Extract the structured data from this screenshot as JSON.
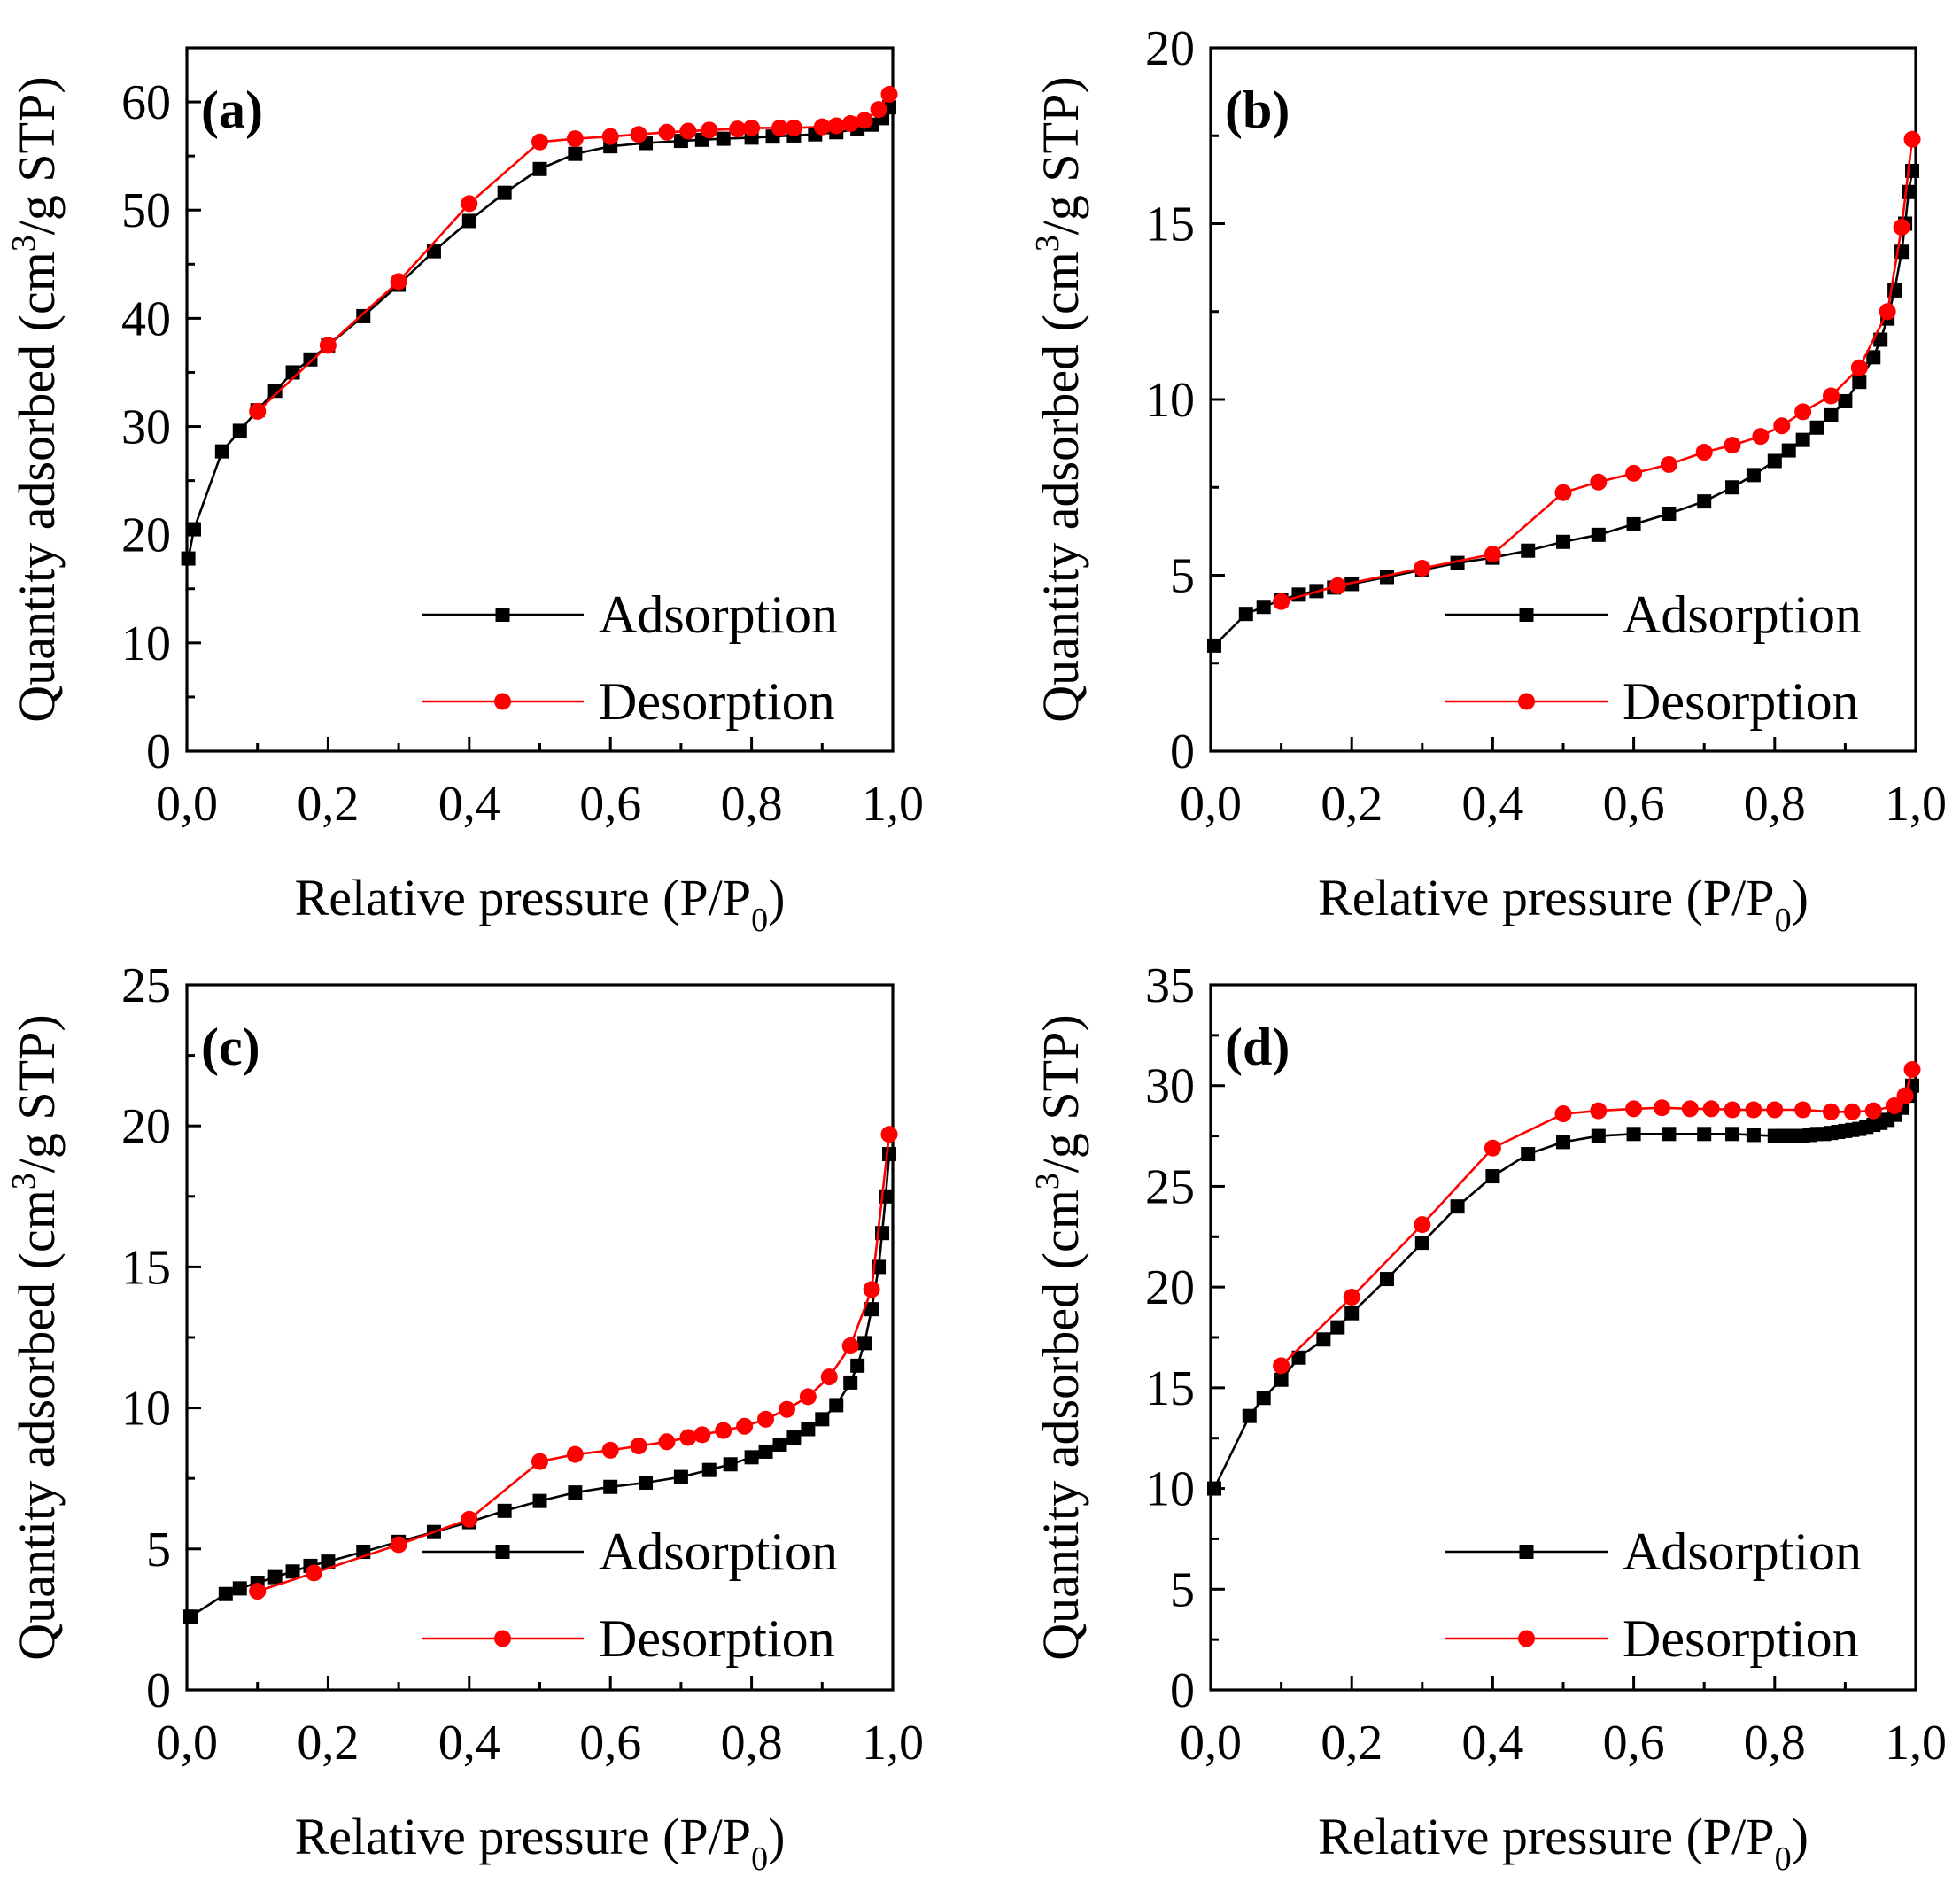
{
  "legend_labels": [
    "Adsorption",
    "Desorption"
  ],
  "colors": {
    "adsorption": "#000000",
    "desorption": "#ff0000"
  },
  "chart_data": [
    {
      "panel": "(a)",
      "type": "line",
      "xlabel": {
        "main": "Relative pressure (P/P",
        "sub": "0",
        "tail": ")"
      },
      "ylabel": {
        "main": "Quantity adsorbed (cm",
        "sup": "3",
        "tail": "/g STP)"
      },
      "xlim": [
        0,
        1
      ],
      "ylim": [
        0,
        65
      ],
      "xticks": [
        "0,0",
        "0,2",
        "0,4",
        "0,6",
        "0,8",
        "1,0"
      ],
      "yticks": [
        "0",
        "10",
        "20",
        "30",
        "40",
        "50",
        "60"
      ],
      "legend_position": "bottom-right",
      "series": [
        {
          "name": "Adsorption",
          "marker": "square",
          "x": [
            0.002,
            0.01,
            0.05,
            0.075,
            0.1,
            0.125,
            0.15,
            0.175,
            0.2,
            0.25,
            0.3,
            0.35,
            0.4,
            0.45,
            0.5,
            0.55,
            0.6,
            0.65,
            0.7,
            0.73,
            0.76,
            0.8,
            0.83,
            0.86,
            0.89,
            0.92,
            0.95,
            0.97,
            0.985,
            0.995
          ],
          "y": [
            17.8,
            20.5,
            27.7,
            29.6,
            31.5,
            33.3,
            35.0,
            36.2,
            37.5,
            40.2,
            43.1,
            46.2,
            49.0,
            51.6,
            53.8,
            55.2,
            55.9,
            56.2,
            56.4,
            56.5,
            56.6,
            56.7,
            56.8,
            56.9,
            57.0,
            57.2,
            57.5,
            57.9,
            58.5,
            59.5
          ]
        },
        {
          "name": "Desorption",
          "marker": "circle",
          "x": [
            0.995,
            0.98,
            0.96,
            0.94,
            0.92,
            0.9,
            0.86,
            0.84,
            0.8,
            0.78,
            0.74,
            0.71,
            0.68,
            0.64,
            0.6,
            0.55,
            0.5,
            0.4,
            0.3,
            0.2,
            0.1
          ],
          "y": [
            60.7,
            59.3,
            58.3,
            58.0,
            57.8,
            57.7,
            57.6,
            57.6,
            57.6,
            57.5,
            57.4,
            57.3,
            57.2,
            57.0,
            56.8,
            56.6,
            56.3,
            50.6,
            43.4,
            37.5,
            31.4
          ]
        }
      ]
    },
    {
      "panel": "(b)",
      "type": "line",
      "xlabel": {
        "main": "Relative pressure (P/P",
        "sub": "0",
        "tail": ")"
      },
      "ylabel": {
        "main": "Quantity adsorbed (cm",
        "sup": "3",
        "tail": "/g STP)"
      },
      "xlim": [
        0,
        1
      ],
      "ylim": [
        0,
        20
      ],
      "xticks": [
        "0,0",
        "0,2",
        "0,4",
        "0,6",
        "0,8",
        "1,0"
      ],
      "yticks": [
        "0",
        "5",
        "10",
        "15",
        "20"
      ],
      "legend_position": "bottom-right",
      "series": [
        {
          "name": "Adsorption",
          "marker": "square",
          "x": [
            0.005,
            0.05,
            0.075,
            0.1,
            0.125,
            0.15,
            0.175,
            0.2,
            0.25,
            0.3,
            0.35,
            0.4,
            0.45,
            0.5,
            0.55,
            0.6,
            0.65,
            0.7,
            0.74,
            0.77,
            0.8,
            0.82,
            0.84,
            0.86,
            0.88,
            0.9,
            0.92,
            0.94,
            0.95,
            0.96,
            0.97,
            0.98,
            0.985,
            0.99,
            0.995
          ],
          "y": [
            3.0,
            3.9,
            4.1,
            4.3,
            4.45,
            4.55,
            4.65,
            4.75,
            4.95,
            5.15,
            5.35,
            5.5,
            5.7,
            5.95,
            6.15,
            6.45,
            6.75,
            7.1,
            7.5,
            7.85,
            8.25,
            8.55,
            8.85,
            9.2,
            9.55,
            9.95,
            10.5,
            11.2,
            11.7,
            12.3,
            13.1,
            14.2,
            15.0,
            15.9,
            16.5
          ]
        },
        {
          "name": "Desorption",
          "marker": "circle",
          "x": [
            0.995,
            0.98,
            0.96,
            0.92,
            0.88,
            0.84,
            0.81,
            0.78,
            0.74,
            0.7,
            0.65,
            0.6,
            0.55,
            0.5,
            0.4,
            0.3,
            0.18,
            0.1
          ],
          "y": [
            17.4,
            14.9,
            12.5,
            10.9,
            10.1,
            9.65,
            9.25,
            8.95,
            8.7,
            8.5,
            8.15,
            7.9,
            7.65,
            7.35,
            5.6,
            5.2,
            4.7,
            4.25
          ]
        }
      ]
    },
    {
      "panel": "(c)",
      "type": "line",
      "xlabel": {
        "main": "Relative pressure (P/P",
        "sub": "0",
        "tail": ")"
      },
      "ylabel": {
        "main": "Quantity adsorbed (cm",
        "sup": "3",
        "tail": "/g STP)"
      },
      "xlim": [
        0,
        1
      ],
      "ylim": [
        0,
        25
      ],
      "xticks": [
        "0,0",
        "0,2",
        "0,4",
        "0,6",
        "0,8",
        "1,0"
      ],
      "yticks": [
        "0",
        "5",
        "10",
        "15",
        "20",
        "25"
      ],
      "legend_position": "bottom-right",
      "series": [
        {
          "name": "Adsorption",
          "marker": "square",
          "x": [
            0.005,
            0.055,
            0.075,
            0.1,
            0.125,
            0.15,
            0.175,
            0.2,
            0.25,
            0.3,
            0.35,
            0.4,
            0.45,
            0.5,
            0.55,
            0.6,
            0.65,
            0.7,
            0.74,
            0.77,
            0.8,
            0.82,
            0.84,
            0.86,
            0.88,
            0.9,
            0.92,
            0.94,
            0.95,
            0.96,
            0.97,
            0.98,
            0.985,
            0.99,
            0.995
          ],
          "y": [
            2.6,
            3.4,
            3.6,
            3.8,
            4.0,
            4.2,
            4.4,
            4.55,
            4.9,
            5.25,
            5.6,
            5.95,
            6.35,
            6.7,
            7.0,
            7.2,
            7.35,
            7.55,
            7.8,
            8.0,
            8.25,
            8.45,
            8.7,
            8.95,
            9.25,
            9.6,
            10.1,
            10.9,
            11.5,
            12.3,
            13.5,
            15.0,
            16.2,
            17.5,
            19.0
          ]
        },
        {
          "name": "Desorption",
          "marker": "circle",
          "x": [
            0.995,
            0.97,
            0.94,
            0.91,
            0.88,
            0.85,
            0.82,
            0.79,
            0.76,
            0.73,
            0.71,
            0.68,
            0.64,
            0.6,
            0.55,
            0.5,
            0.4,
            0.3,
            0.18,
            0.1
          ],
          "y": [
            19.7,
            14.2,
            12.2,
            11.1,
            10.4,
            9.95,
            9.6,
            9.35,
            9.2,
            9.05,
            8.95,
            8.8,
            8.65,
            8.5,
            8.35,
            8.1,
            6.05,
            5.15,
            4.15,
            3.5
          ]
        }
      ]
    },
    {
      "panel": "(d)",
      "type": "line",
      "xlabel": {
        "main": "Relative pressure (P/P",
        "sub": "0",
        "tail": ")"
      },
      "ylabel": {
        "main": "Quantity adsorbed (cm",
        "sup": "3",
        "tail": "/g STP)"
      },
      "xlim": [
        0,
        1
      ],
      "ylim": [
        0,
        35
      ],
      "xticks": [
        "0,0",
        "0,2",
        "0,4",
        "0,6",
        "0,8",
        "1,0"
      ],
      "yticks": [
        "0",
        "5",
        "10",
        "15",
        "20",
        "25",
        "30",
        "35"
      ],
      "legend_position": "bottom-right",
      "series": [
        {
          "name": "Adsorption",
          "marker": "square",
          "x": [
            0.005,
            0.055,
            0.075,
            0.1,
            0.125,
            0.16,
            0.18,
            0.2,
            0.25,
            0.3,
            0.35,
            0.4,
            0.45,
            0.5,
            0.55,
            0.6,
            0.65,
            0.7,
            0.74,
            0.77,
            0.8,
            0.81,
            0.82,
            0.83,
            0.84,
            0.85,
            0.86,
            0.87,
            0.88,
            0.89,
            0.9,
            0.91,
            0.92,
            0.93,
            0.94,
            0.95,
            0.96,
            0.97,
            0.98,
            0.99,
            0.995
          ],
          "y": [
            10.0,
            13.6,
            14.5,
            15.4,
            16.5,
            17.4,
            18.0,
            18.7,
            20.4,
            22.2,
            24.0,
            25.5,
            26.6,
            27.2,
            27.5,
            27.6,
            27.6,
            27.6,
            27.6,
            27.55,
            27.5,
            27.5,
            27.5,
            27.5,
            27.5,
            27.55,
            27.6,
            27.6,
            27.65,
            27.7,
            27.75,
            27.8,
            27.85,
            27.95,
            28.05,
            28.15,
            28.3,
            28.55,
            28.9,
            29.5,
            30.0
          ]
        },
        {
          "name": "Desorption",
          "marker": "circle",
          "x": [
            0.995,
            0.985,
            0.97,
            0.94,
            0.91,
            0.88,
            0.84,
            0.8,
            0.77,
            0.74,
            0.71,
            0.68,
            0.64,
            0.6,
            0.55,
            0.5,
            0.4,
            0.3,
            0.2,
            0.1
          ],
          "y": [
            30.8,
            29.5,
            29.0,
            28.75,
            28.7,
            28.7,
            28.8,
            28.8,
            28.8,
            28.8,
            28.85,
            28.85,
            28.9,
            28.85,
            28.75,
            28.6,
            26.9,
            23.1,
            19.5,
            16.1
          ]
        }
      ]
    }
  ]
}
